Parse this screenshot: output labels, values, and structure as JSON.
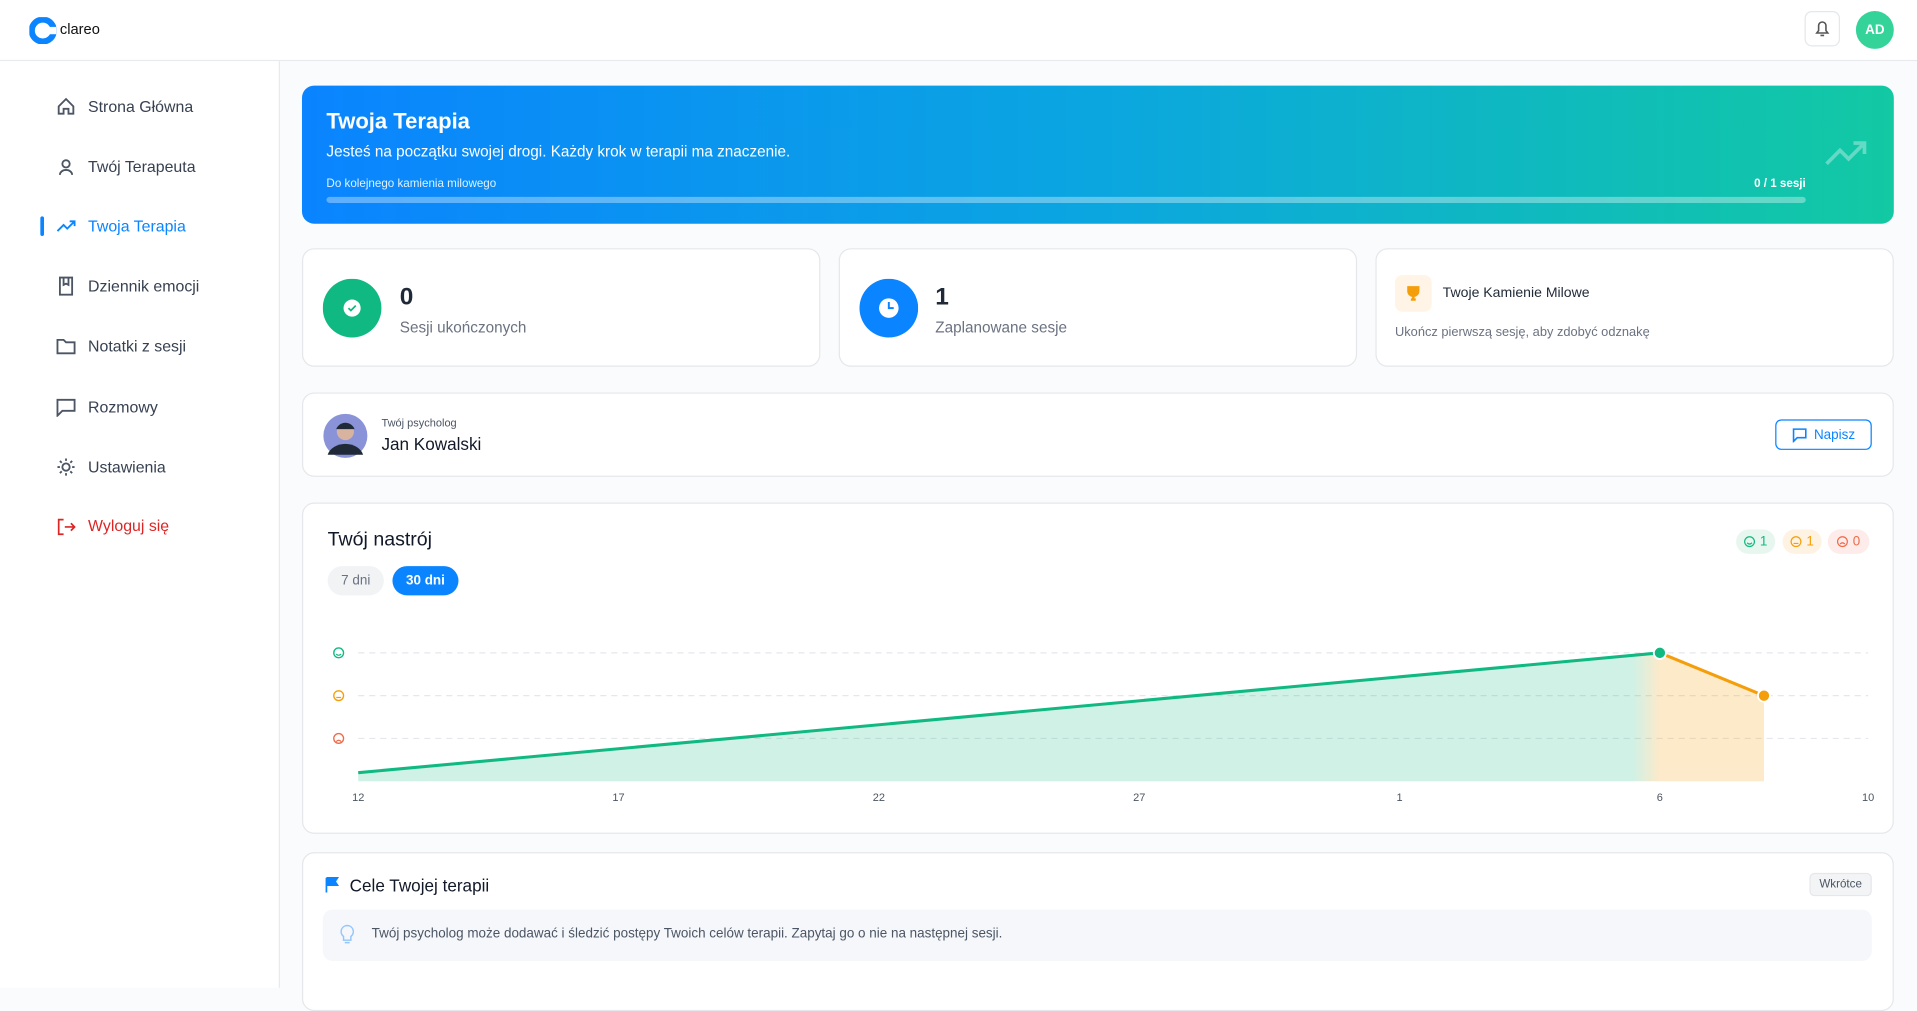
{
  "header": {
    "logo": "clareo",
    "avatar": "AD"
  },
  "sidebar": {
    "items": [
      "Strona Główna",
      "Twój Terapeuta",
      "Twoja Terapia",
      "Dziennik emocji",
      "Notatki z sesji",
      "Rozmowy",
      "Ustawienia"
    ],
    "logout": "Wyloguj się"
  },
  "hero": {
    "title": "Twoja Terapia",
    "subtitle": "Jesteś na początku swojej drogi. Każdy krok w terapii ma znaczenie.",
    "progress_label": "Do kolejnego kamienia milowego",
    "progress_text": "0 / 1 sesji"
  },
  "stats": [
    {
      "value": "0",
      "label": "Sesji ukończonych"
    },
    {
      "value": "1",
      "label": "Zaplanowane sesje"
    }
  ],
  "milestones": {
    "title": "Twoje Kamienie Milowe",
    "text": "Ukończ pierwszą sesję, aby zdobyć odznakę"
  },
  "psychologist": {
    "caption": "Twój psycholog",
    "name": "Jan Kowalski",
    "button": "Napisz"
  },
  "mood": {
    "ranges": [
      "7 dni",
      "30 dni"
    ],
    "counts": [
      "1",
      "1",
      "0"
    ]
  },
  "chart_data": {
    "type": "line",
    "title": "Twój nastrój",
    "x": [
      0,
      25,
      27
    ],
    "series": [
      {
        "name": "Nastrój",
        "color": "#10b981",
        "values": [
          0.2,
          3,
          2
        ]
      }
    ],
    "point_colors": [
      "#10b981",
      "#10b981",
      "#f59e0b"
    ],
    "xlim": [
      0,
      29
    ],
    "xticks": [
      {
        "value": 0,
        "label": "12"
      },
      {
        "value": 5,
        "label": "17"
      },
      {
        "value": 10,
        "label": "22"
      },
      {
        "value": 15,
        "label": "27"
      },
      {
        "value": 20,
        "label": "1"
      },
      {
        "value": 25,
        "label": "6"
      },
      {
        "value": 29,
        "label": "10"
      }
    ],
    "ylim": [
      0,
      3
    ],
    "yticks": [
      1,
      2,
      3
    ],
    "ytick_colors": [
      "#ef6b4a",
      "#f59e0b",
      "#10b981"
    ],
    "grid": true
  },
  "goals": {
    "title": "Cele Twojej terapii",
    "badge": "Wkrótce",
    "tip": "Twój psycholog może dodawać i śledzić postępy Twoich celów terapii. Zapytaj go o nie na następnej sesji."
  }
}
